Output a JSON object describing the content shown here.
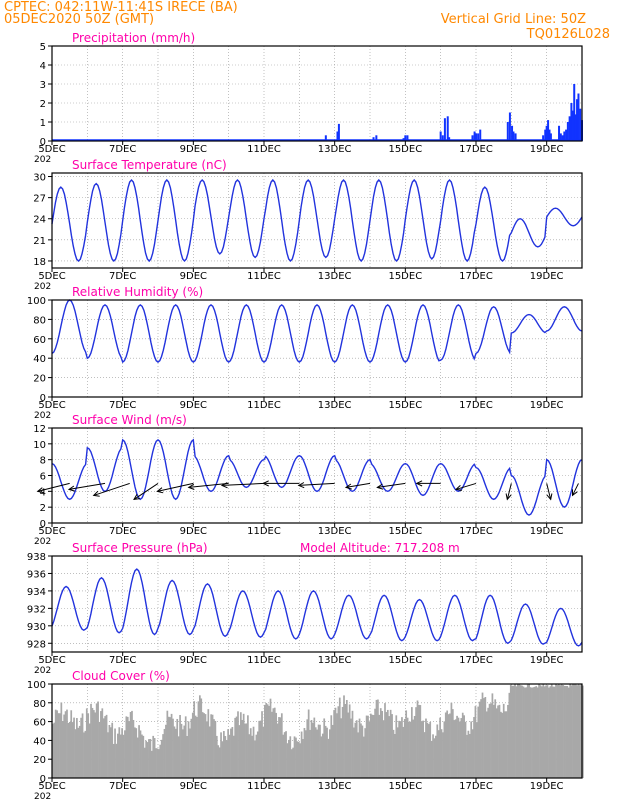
{
  "header": {
    "line1": "CPTEC:   042:11W-11:41S   IRECE (BA)",
    "line2": "05DEC2020 50Z (GMT)",
    "grid_note": "Vertical Grid Line: 50Z",
    "model": "TQ0126L028"
  },
  "colors": {
    "header": "#ff8800",
    "title": "#ff00aa",
    "line": "#2233dd",
    "bar": "#1133ff",
    "cloud": "#a8a8a8",
    "frame": "#000000"
  },
  "x_ticks": [
    "5DEC",
    "7DEC",
    "9DEC",
    "11DEC",
    "13DEC",
    "15DEC",
    "17DEC",
    "19DEC"
  ],
  "x_year_fragment": "202",
  "chart_data": [
    {
      "type": "bar",
      "title": "Precipitation (mm/h)",
      "x_range_days": [
        0,
        15
      ],
      "ylim": [
        0,
        5
      ],
      "yticks": [
        "0",
        "1",
        "2",
        "3",
        "4",
        "5"
      ],
      "grid": true,
      "bars": [
        [
          7.75,
          0.3
        ],
        [
          8.08,
          0.5
        ],
        [
          8.12,
          0.9
        ],
        [
          9.1,
          0.2
        ],
        [
          9.18,
          0.3
        ],
        [
          9.95,
          0.15
        ],
        [
          10.0,
          0.3
        ],
        [
          10.06,
          0.3
        ],
        [
          11.0,
          0.5
        ],
        [
          11.06,
          0.3
        ],
        [
          11.12,
          1.2
        ],
        [
          11.2,
          1.3
        ],
        [
          11.24,
          0.2
        ],
        [
          11.9,
          0.3
        ],
        [
          11.96,
          0.5
        ],
        [
          12.0,
          0.4
        ],
        [
          12.06,
          0.4
        ],
        [
          12.12,
          0.6
        ],
        [
          12.9,
          1.0
        ],
        [
          12.96,
          1.5
        ],
        [
          13.02,
          0.8
        ],
        [
          13.06,
          0.5
        ],
        [
          13.12,
          0.4
        ],
        [
          13.9,
          0.3
        ],
        [
          13.96,
          0.6
        ],
        [
          14.0,
          0.8
        ],
        [
          14.04,
          1.1
        ],
        [
          14.08,
          0.6
        ],
        [
          14.12,
          0.4
        ],
        [
          14.35,
          0.8
        ],
        [
          14.4,
          0.4
        ],
        [
          14.45,
          0.3
        ],
        [
          14.5,
          0.5
        ],
        [
          14.55,
          0.6
        ],
        [
          14.6,
          1.0
        ],
        [
          14.65,
          1.3
        ],
        [
          14.7,
          2.0
        ],
        [
          14.74,
          1.6
        ],
        [
          14.78,
          3.0
        ],
        [
          14.82,
          1.4
        ],
        [
          14.86,
          2.2
        ],
        [
          14.9,
          2.5
        ],
        [
          14.95,
          1.7
        ],
        [
          15.0,
          1.1
        ]
      ]
    },
    {
      "type": "line",
      "title": "Surface Temperature (nC)",
      "x_range_days": [
        0,
        15
      ],
      "ylim": [
        17,
        30.5
      ],
      "yticks": [
        "18",
        "21",
        "24",
        "27",
        "30"
      ],
      "ytick_values": [
        18,
        21,
        24,
        27,
        30
      ],
      "grid": true,
      "diurnal": {
        "mins": [
          18.0,
          18.0,
          18.0,
          18.0,
          19.0,
          18.5,
          18.0,
          18.5,
          18.0,
          18.0,
          18.3,
          18.0,
          18.0,
          20.0,
          23.0
        ],
        "maxs": [
          28.5,
          29.0,
          29.5,
          29.5,
          29.5,
          29.5,
          29.5,
          29.5,
          29.5,
          29.5,
          29.5,
          29.5,
          28.5,
          24.0,
          25.5
        ]
      }
    },
    {
      "type": "line",
      "title": "Relative Humidity (%)",
      "x_range_days": [
        0,
        15
      ],
      "ylim": [
        0,
        100
      ],
      "yticks": [
        "0",
        "20",
        "40",
        "60",
        "80",
        "100"
      ],
      "ytick_values": [
        0,
        20,
        40,
        60,
        80,
        100
      ],
      "grid": true,
      "diurnal": {
        "mins": [
          45,
          40,
          36,
          36,
          36,
          36,
          36,
          36,
          36,
          36,
          36,
          38,
          45,
          66,
          68
        ],
        "maxs": [
          100,
          95,
          95,
          95,
          95,
          95,
          95,
          95,
          95,
          95,
          95,
          95,
          93,
          85,
          93
        ]
      }
    },
    {
      "type": "line",
      "title": "Surface Wind (m/s)",
      "x_range_days": [
        0,
        15
      ],
      "ylim": [
        0,
        12
      ],
      "yticks": [
        "0",
        "2",
        "4",
        "6",
        "8",
        "10",
        "12"
      ],
      "ytick_values": [
        0,
        2,
        4,
        6,
        8,
        10,
        12
      ],
      "grid": true,
      "diurnal": {
        "mins": [
          3.0,
          4.0,
          3.0,
          3.0,
          4.0,
          4.5,
          4.5,
          4.0,
          4.0,
          4.0,
          3.5,
          4.0,
          3.0,
          1.0,
          2.0
        ],
        "maxs": [
          7.5,
          9.5,
          10.5,
          10.5,
          8.5,
          8.0,
          8.5,
          8.5,
          8.0,
          7.5,
          7.5,
          7.5,
          7.0,
          6.0,
          8.0
        ]
      },
      "vectors": [
        [
          0.5,
          -8.0,
          -2.0
        ],
        [
          1.5,
          -9.0,
          -1.5
        ],
        [
          2.2,
          -9.0,
          -3.0
        ],
        [
          3.0,
          -6.0,
          -4.0
        ],
        [
          4.0,
          -9.0,
          -2.0
        ],
        [
          5.0,
          -10.0,
          -1.0
        ],
        [
          6.0,
          -10.5,
          -0.5
        ],
        [
          7.0,
          -9.0,
          0.0
        ],
        [
          8.0,
          -9.0,
          -0.5
        ],
        [
          9.0,
          -6.0,
          -1.0
        ],
        [
          10.0,
          -7.0,
          -1.0
        ],
        [
          11.0,
          -6.0,
          0.0
        ],
        [
          12.0,
          -5.0,
          -1.5
        ],
        [
          13.0,
          -1.0,
          -4.0
        ],
        [
          14.0,
          1.0,
          -4.0
        ],
        [
          14.9,
          -1.5,
          -3.0
        ]
      ]
    },
    {
      "type": "line",
      "title": "Surface Pressure (hPa)",
      "annotation": "Model Altitude: 717.208  m",
      "x_range_days": [
        0,
        15
      ],
      "ylim": [
        927,
        938
      ],
      "yticks": [
        "928",
        "930",
        "932",
        "934",
        "936",
        "938"
      ],
      "ytick_values": [
        928,
        930,
        932,
        934,
        936,
        938
      ],
      "grid": true,
      "diurnal": {
        "mins": [
          929.5,
          929.2,
          929.0,
          929.0,
          928.8,
          928.7,
          928.5,
          928.5,
          928.5,
          928.3,
          928.3,
          928.3,
          928.0,
          927.9,
          927.7
        ],
        "maxs": [
          934.5,
          935.5,
          936.5,
          935.2,
          934.8,
          934.0,
          934.0,
          934.0,
          933.5,
          933.5,
          933.0,
          933.5,
          933.5,
          932.5,
          932.0
        ]
      }
    },
    {
      "type": "bar",
      "title": "Cloud Cover (%)",
      "x_range_days": [
        0,
        15
      ],
      "ylim": [
        0,
        100
      ],
      "yticks": [
        "0",
        "20",
        "40",
        "60",
        "80",
        "100"
      ],
      "grid": true,
      "profile": [
        [
          0,
          70
        ],
        [
          1,
          80
        ],
        [
          2,
          65
        ],
        [
          3,
          55
        ],
        [
          4,
          85
        ],
        [
          5,
          55
        ],
        [
          6,
          80
        ],
        [
          7,
          60
        ],
        [
          8,
          80
        ],
        [
          9,
          75
        ],
        [
          10,
          78
        ],
        [
          11,
          70
        ],
        [
          12,
          82
        ],
        [
          12.5,
          88
        ],
        [
          13.0,
          100
        ],
        [
          14.0,
          100
        ],
        [
          15,
          100
        ]
      ]
    }
  ]
}
